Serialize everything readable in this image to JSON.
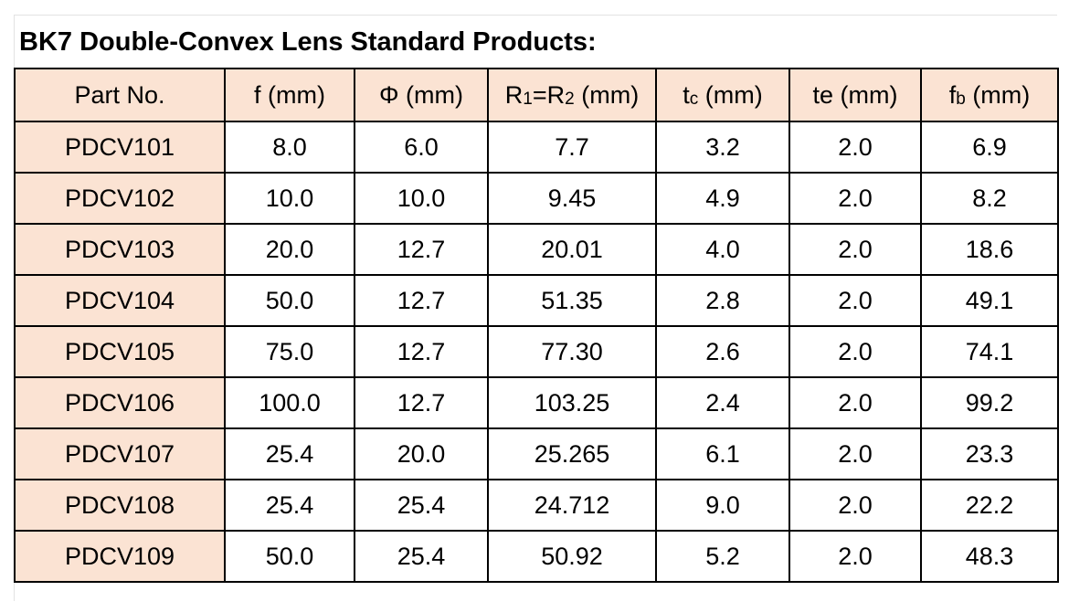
{
  "title": "BK7 Double-Convex Lens Standard Products:",
  "columns": {
    "part": "Part No.",
    "f": {
      "main": "f",
      "unit": " (mm)"
    },
    "phi": {
      "main": "Φ",
      "unit": " (mm)"
    },
    "r": {
      "main1": "R",
      "sub1": "1",
      "mid": "=R",
      "sub2": "2",
      "unit": " (mm)"
    },
    "tc": {
      "main": "t",
      "sub": "c",
      "unit": " (mm)"
    },
    "te": {
      "main": "te",
      "unit": " (mm)"
    },
    "fb": {
      "main": "f",
      "sub": "b",
      "unit": " (mm)"
    }
  },
  "rows": [
    {
      "part": "PDCV101",
      "f": "8.0",
      "phi": "6.0",
      "r": "7.7",
      "tc": "3.2",
      "te": "2.0",
      "fb": "6.9"
    },
    {
      "part": "PDCV102",
      "f": "10.0",
      "phi": "10.0",
      "r": "9.45",
      "tc": "4.9",
      "te": "2.0",
      "fb": "8.2"
    },
    {
      "part": "PDCV103",
      "f": "20.0",
      "phi": "12.7",
      "r": "20.01",
      "tc": "4.0",
      "te": "2.0",
      "fb": "18.6"
    },
    {
      "part": "PDCV104",
      "f": "50.0",
      "phi": "12.7",
      "r": "51.35",
      "tc": "2.8",
      "te": "2.0",
      "fb": "49.1"
    },
    {
      "part": "PDCV105",
      "f": "75.0",
      "phi": "12.7",
      "r": "77.30",
      "tc": "2.6",
      "te": "2.0",
      "fb": "74.1"
    },
    {
      "part": "PDCV106",
      "f": "100.0",
      "phi": "12.7",
      "r": "103.25",
      "tc": "2.4",
      "te": "2.0",
      "fb": "99.2"
    },
    {
      "part": "PDCV107",
      "f": "25.4",
      "phi": "20.0",
      "r": "25.265",
      "tc": "6.1",
      "te": "2.0",
      "fb": "23.3"
    },
    {
      "part": "PDCV108",
      "f": "25.4",
      "phi": "25.4",
      "r": "24.712",
      "tc": "9.0",
      "te": "2.0",
      "fb": "22.2"
    },
    {
      "part": "PDCV109",
      "f": "50.0",
      "phi": "25.4",
      "r": "50.92",
      "tc": "5.2",
      "te": "2.0",
      "fb": "48.3"
    }
  ],
  "colors": {
    "header_fill": "#fbe3d3",
    "grid": "#000000"
  }
}
